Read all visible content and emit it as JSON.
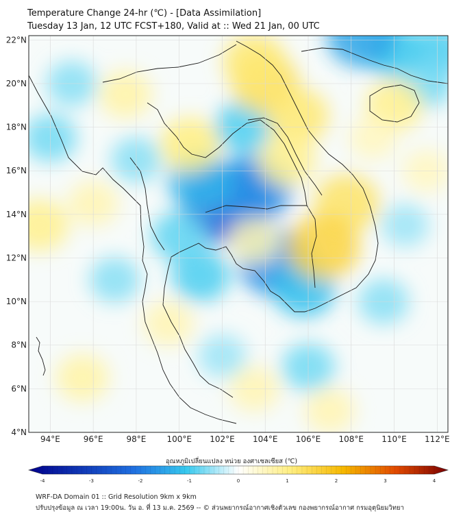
{
  "title": {
    "line1": "Temperature Change 24-hr (℃) - [Data Assimilation]",
    "line2": "Tuesday 13 Jan, 12 UTC FCST+180, Valid at :: Wed 21 Jan, 00 UTC"
  },
  "map": {
    "lon_range": [
      93,
      112.5
    ],
    "lat_range": [
      4,
      22.2
    ],
    "lon_ticks": [
      "94°E",
      "96°E",
      "98°E",
      "100°E",
      "102°E",
      "104°E",
      "106°E",
      "108°E",
      "110°E",
      "112°E"
    ],
    "lat_ticks": [
      "22°N",
      "20°N",
      "18°N",
      "16°N",
      "14°N",
      "12°N",
      "10°N",
      "8°N",
      "6°N",
      "4°N"
    ],
    "lon_values": [
      94,
      96,
      98,
      100,
      102,
      104,
      106,
      108,
      110,
      112
    ],
    "lat_values": [
      22,
      20,
      18,
      16,
      14,
      12,
      10,
      8,
      6,
      4
    ],
    "anomalies": [
      {
        "lon": 102.2,
        "lat": 14.5,
        "value": -2.2
      },
      {
        "lon": 103.5,
        "lat": 15.2,
        "value": -1.6
      },
      {
        "lon": 104.5,
        "lat": 11.8,
        "value": -1.6
      },
      {
        "lon": 101.0,
        "lat": 15.5,
        "value": -1.2
      },
      {
        "lon": 105.8,
        "lat": 10.6,
        "value": -1.1
      },
      {
        "lon": 101.0,
        "lat": 11.2,
        "value": -0.9
      },
      {
        "lon": 103.0,
        "lat": 18.0,
        "value": -0.9
      },
      {
        "lon": 100.0,
        "lat": 13.0,
        "value": -0.8
      },
      {
        "lon": 110.0,
        "lat": 21.5,
        "value": -1.0
      },
      {
        "lon": 108.5,
        "lat": 22.2,
        "value": -1.4
      },
      {
        "lon": 112.0,
        "lat": 21.5,
        "value": -0.9
      },
      {
        "lon": 111.5,
        "lat": 20.0,
        "value": -0.7
      },
      {
        "lon": 94.0,
        "lat": 17.5,
        "value": -0.7
      },
      {
        "lon": 95.0,
        "lat": 20.0,
        "value": -0.6
      },
      {
        "lon": 97.0,
        "lat": 11.0,
        "value": -0.6
      },
      {
        "lon": 109.5,
        "lat": 10.0,
        "value": -0.6
      },
      {
        "lon": 110.5,
        "lat": 13.5,
        "value": -0.5
      },
      {
        "lon": 106.0,
        "lat": 7.0,
        "value": -0.7
      },
      {
        "lon": 102.0,
        "lat": 7.5,
        "value": -0.5
      },
      {
        "lon": 98.0,
        "lat": 16.5,
        "value": -0.6
      },
      {
        "lon": 104.0,
        "lat": 20.0,
        "value": 1.3
      },
      {
        "lon": 103.5,
        "lat": 21.0,
        "value": 1.1
      },
      {
        "lon": 105.5,
        "lat": 18.5,
        "value": 1.1
      },
      {
        "lon": 100.5,
        "lat": 17.2,
        "value": 1.0
      },
      {
        "lon": 107.8,
        "lat": 14.5,
        "value": 1.2
      },
      {
        "lon": 106.7,
        "lat": 12.5,
        "value": 1.5
      },
      {
        "lon": 105.0,
        "lat": 16.5,
        "value": 0.9
      },
      {
        "lon": 110.0,
        "lat": 19.0,
        "value": 0.9
      },
      {
        "lon": 97.5,
        "lat": 19.5,
        "value": 0.7
      },
      {
        "lon": 93.5,
        "lat": 13.5,
        "value": 0.9
      },
      {
        "lon": 95.5,
        "lat": 6.5,
        "value": 0.7
      },
      {
        "lon": 103.5,
        "lat": 6.0,
        "value": 0.6
      },
      {
        "lon": 107.0,
        "lat": 5.0,
        "value": 0.6
      },
      {
        "lon": 99.5,
        "lat": 9.0,
        "value": 0.6
      },
      {
        "lon": 111.5,
        "lat": 16.0,
        "value": 0.5
      },
      {
        "lon": 96.0,
        "lat": 14.5,
        "value": 0.6
      },
      {
        "lon": 103.5,
        "lat": 12.8,
        "value": 0.6
      },
      {
        "lon": 109.0,
        "lat": 17.5,
        "value": 0.5
      }
    ]
  },
  "colorbar": {
    "label": "อุณหภูมิเปลี่ยนแปลง หน่วย องศาเซลเซียส (℃)",
    "ticks": [
      "-4",
      "-3",
      "-2",
      "-1",
      "0",
      "1",
      "2",
      "3",
      "4"
    ],
    "tick_values": [
      -4,
      -3,
      -2,
      -1,
      0,
      1,
      2,
      3,
      4
    ],
    "stops": [
      {
        "value": -4,
        "color": "#00008b"
      },
      {
        "value": -2,
        "color": "#1f6fe0"
      },
      {
        "value": -1,
        "color": "#36c8ee"
      },
      {
        "value": 0,
        "color": "#ffffff"
      },
      {
        "value": 1,
        "color": "#ffee80"
      },
      {
        "value": 2,
        "color": "#f6b800"
      },
      {
        "value": 3,
        "color": "#e14a00"
      },
      {
        "value": 4,
        "color": "#7a0000"
      }
    ]
  },
  "footer": {
    "line1": "WRF-DA Domain 01 :: Grid Resolution 9km x 9km",
    "line2": "ปรับปรุงข้อมูล ณ เวลา 19:00น. วัน อ. ที่ 13 ม.ค. 2569 -- © ส่วนพยากรณ์อากาศเชิงตัวเลข กองพยากรณ์อากาศ กรมอุตุนิยมวิทยา"
  }
}
